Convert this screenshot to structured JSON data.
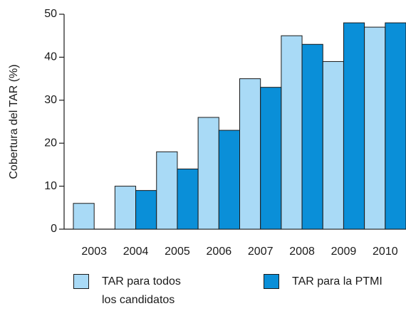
{
  "chart_data": {
    "type": "bar",
    "y_label": "Cobertura del TAR (%)",
    "categories": [
      "2003",
      "2004",
      "2005",
      "2006",
      "2007",
      "2008",
      "2009",
      "2010"
    ],
    "series": [
      {
        "name": "TAR para todos los candidatos",
        "color": "#a9daf6",
        "values": [
          6,
          10,
          18,
          26,
          35,
          45,
          39,
          47
        ]
      },
      {
        "name": "TAR para la PTMI",
        "color": "#0a8fd8",
        "values": [
          0,
          9,
          14,
          23,
          33,
          43,
          48,
          48
        ]
      }
    ],
    "ylim": [
      0,
      50
    ],
    "yticks": [
      0,
      10,
      20,
      30,
      40,
      50
    ]
  }
}
